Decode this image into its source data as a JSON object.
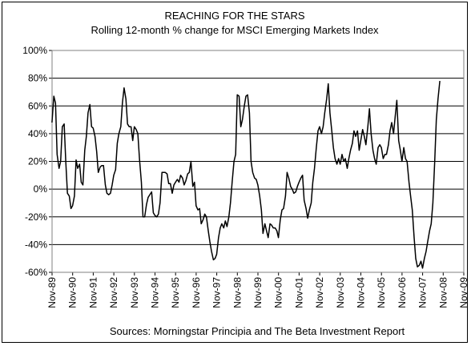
{
  "chart_data": {
    "type": "line",
    "title": "REACHING FOR THE STARS",
    "subtitle": "Rolling 12-month % change for MSCI Emerging Markets Index",
    "source": "Sources: Morningstar Principia and The Beta Investment Report",
    "xlabel": "",
    "ylabel": "",
    "ylim": [
      -60,
      100
    ],
    "yticks": [
      -60,
      -40,
      -20,
      0,
      20,
      40,
      60,
      80,
      100
    ],
    "ytick_labels": [
      "-60%",
      "-40%",
      "-20%",
      "0%",
      "20%",
      "40%",
      "60%",
      "80%",
      "100%"
    ],
    "xlim": [
      1989.833,
      2009.833
    ],
    "xticks": [
      1989.833,
      1990.833,
      1991.833,
      1992.833,
      1993.833,
      1994.833,
      1995.833,
      1996.833,
      1997.833,
      1998.833,
      1999.833,
      2000.833,
      2001.833,
      2002.833,
      2003.833,
      2004.833,
      2005.833,
      2006.833,
      2007.833,
      2008.833,
      2009.833
    ],
    "xtick_labels": [
      "Nov-89",
      "Nov-90",
      "Nov-91",
      "Nov-92",
      "Nov-93",
      "Nov-94",
      "Nov-95",
      "Nov-96",
      "Nov-97",
      "Nov-98",
      "Nov-99",
      "Nov-00",
      "Nov-01",
      "Nov-02",
      "Nov-03",
      "Nov-04",
      "Nov-05",
      "Nov-06",
      "Nov-07",
      "Nov-08",
      "Nov-09"
    ],
    "grid": "horizontal",
    "legend": "none",
    "line_color": "#000000",
    "series": [
      {
        "values": [
          [
            1989.83,
            48
          ],
          [
            1989.92,
            67
          ],
          [
            1990.0,
            62
          ],
          [
            1990.08,
            25
          ],
          [
            1990.17,
            15
          ],
          [
            1990.25,
            20
          ],
          [
            1990.33,
            45
          ],
          [
            1990.42,
            47
          ],
          [
            1990.5,
            20
          ],
          [
            1990.58,
            -3
          ],
          [
            1990.67,
            -5
          ],
          [
            1990.75,
            -14
          ],
          [
            1990.83,
            -12
          ],
          [
            1990.92,
            -5
          ],
          [
            1991.0,
            21
          ],
          [
            1991.08,
            15
          ],
          [
            1991.17,
            18
          ],
          [
            1991.25,
            5
          ],
          [
            1991.33,
            3
          ],
          [
            1991.42,
            28
          ],
          [
            1991.5,
            38
          ],
          [
            1991.58,
            55
          ],
          [
            1991.67,
            61
          ],
          [
            1991.75,
            45
          ],
          [
            1991.83,
            44
          ],
          [
            1991.92,
            38
          ],
          [
            1992.0,
            27
          ],
          [
            1992.08,
            12
          ],
          [
            1992.17,
            16
          ],
          [
            1992.25,
            17
          ],
          [
            1992.33,
            17
          ],
          [
            1992.42,
            3
          ],
          [
            1992.5,
            -3
          ],
          [
            1992.58,
            -4
          ],
          [
            1992.67,
            -3
          ],
          [
            1992.75,
            3
          ],
          [
            1992.83,
            10
          ],
          [
            1992.92,
            14
          ],
          [
            1993.0,
            33
          ],
          [
            1993.08,
            40
          ],
          [
            1993.17,
            45
          ],
          [
            1993.25,
            62
          ],
          [
            1993.33,
            73
          ],
          [
            1993.42,
            65
          ],
          [
            1993.5,
            47
          ],
          [
            1993.58,
            45
          ],
          [
            1993.67,
            45
          ],
          [
            1993.75,
            35
          ],
          [
            1993.83,
            45
          ],
          [
            1993.92,
            43
          ],
          [
            1994.0,
            40
          ],
          [
            1994.08,
            22
          ],
          [
            1994.17,
            5
          ],
          [
            1994.25,
            -20
          ],
          [
            1994.33,
            -20
          ],
          [
            1994.42,
            -11
          ],
          [
            1994.5,
            -6
          ],
          [
            1994.58,
            -4
          ],
          [
            1994.67,
            -2
          ],
          [
            1994.75,
            -17
          ],
          [
            1994.83,
            -19
          ],
          [
            1994.92,
            -20
          ],
          [
            1995.0,
            -18
          ],
          [
            1995.08,
            -10
          ],
          [
            1995.17,
            12
          ],
          [
            1995.25,
            12
          ],
          [
            1995.33,
            12
          ],
          [
            1995.42,
            11
          ],
          [
            1995.5,
            4
          ],
          [
            1995.58,
            4
          ],
          [
            1995.67,
            -3
          ],
          [
            1995.75,
            3
          ],
          [
            1995.83,
            5
          ],
          [
            1995.92,
            7
          ],
          [
            1996.0,
            5
          ],
          [
            1996.08,
            10
          ],
          [
            1996.17,
            8
          ],
          [
            1996.25,
            3
          ],
          [
            1996.33,
            6
          ],
          [
            1996.42,
            11
          ],
          [
            1996.5,
            12
          ],
          [
            1996.58,
            20
          ],
          [
            1996.67,
            2
          ],
          [
            1996.75,
            5
          ],
          [
            1996.83,
            -12
          ],
          [
            1996.92,
            -15
          ],
          [
            1997.0,
            -14
          ],
          [
            1997.08,
            -25
          ],
          [
            1997.17,
            -22
          ],
          [
            1997.25,
            -18
          ],
          [
            1997.33,
            -20
          ],
          [
            1997.42,
            -30
          ],
          [
            1997.5,
            -38
          ],
          [
            1997.58,
            -45
          ],
          [
            1997.67,
            -51
          ],
          [
            1997.75,
            -50
          ],
          [
            1997.83,
            -47
          ],
          [
            1997.92,
            -35
          ],
          [
            1998.0,
            -28
          ],
          [
            1998.08,
            -25
          ],
          [
            1998.17,
            -28
          ],
          [
            1998.25,
            -23
          ],
          [
            1998.33,
            -27
          ],
          [
            1998.42,
            -20
          ],
          [
            1998.5,
            -10
          ],
          [
            1998.58,
            5
          ],
          [
            1998.67,
            20
          ],
          [
            1998.75,
            25
          ],
          [
            1998.83,
            68
          ],
          [
            1998.92,
            67
          ],
          [
            1999.0,
            45
          ],
          [
            1999.08,
            50
          ],
          [
            1999.17,
            60
          ],
          [
            1999.25,
            67
          ],
          [
            1999.33,
            68
          ],
          [
            1999.42,
            55
          ],
          [
            1999.5,
            20
          ],
          [
            1999.58,
            12
          ],
          [
            1999.67,
            8
          ],
          [
            1999.75,
            7
          ],
          [
            1999.83,
            3
          ],
          [
            1999.92,
            -5
          ],
          [
            2000.0,
            -15
          ],
          [
            2000.08,
            -32
          ],
          [
            2000.17,
            -25
          ],
          [
            2000.25,
            -30
          ],
          [
            2000.33,
            -35
          ],
          [
            2000.42,
            -25
          ],
          [
            2000.5,
            -26
          ],
          [
            2000.58,
            -28
          ],
          [
            2000.67,
            -28
          ],
          [
            2000.75,
            -30
          ],
          [
            2000.83,
            -35
          ],
          [
            2000.92,
            -22
          ],
          [
            2001.0,
            -15
          ],
          [
            2001.08,
            -14
          ],
          [
            2001.17,
            -5
          ],
          [
            2001.25,
            12
          ],
          [
            2001.33,
            8
          ],
          [
            2001.42,
            2
          ],
          [
            2001.5,
            0
          ],
          [
            2001.58,
            -3
          ],
          [
            2001.67,
            -2
          ],
          [
            2001.75,
            2
          ],
          [
            2001.83,
            5
          ],
          [
            2001.92,
            8
          ],
          [
            2002.0,
            10
          ],
          [
            2002.08,
            -8
          ],
          [
            2002.17,
            -14
          ],
          [
            2002.25,
            -21
          ],
          [
            2002.33,
            -15
          ],
          [
            2002.42,
            -10
          ],
          [
            2002.5,
            5
          ],
          [
            2002.58,
            15
          ],
          [
            2002.67,
            30
          ],
          [
            2002.75,
            42
          ],
          [
            2002.83,
            45
          ],
          [
            2002.92,
            40
          ],
          [
            2003.0,
            45
          ],
          [
            2003.08,
            55
          ],
          [
            2003.17,
            65
          ],
          [
            2003.25,
            76
          ],
          [
            2003.33,
            55
          ],
          [
            2003.42,
            42
          ],
          [
            2003.5,
            30
          ],
          [
            2003.58,
            22
          ],
          [
            2003.67,
            18
          ],
          [
            2003.75,
            22
          ],
          [
            2003.83,
            18
          ],
          [
            2003.92,
            25
          ],
          [
            2004.0,
            20
          ],
          [
            2004.08,
            22
          ],
          [
            2004.17,
            15
          ],
          [
            2004.25,
            22
          ],
          [
            2004.33,
            28
          ],
          [
            2004.42,
            33
          ],
          [
            2004.5,
            42
          ],
          [
            2004.58,
            38
          ],
          [
            2004.67,
            42
          ],
          [
            2004.75,
            28
          ],
          [
            2004.83,
            35
          ],
          [
            2004.92,
            43
          ],
          [
            2005.0,
            38
          ],
          [
            2005.08,
            32
          ],
          [
            2005.17,
            45
          ],
          [
            2005.25,
            58
          ],
          [
            2005.33,
            40
          ],
          [
            2005.42,
            28
          ],
          [
            2005.5,
            22
          ],
          [
            2005.58,
            18
          ],
          [
            2005.67,
            30
          ],
          [
            2005.75,
            32
          ],
          [
            2005.83,
            30
          ],
          [
            2005.92,
            22
          ],
          [
            2006.0,
            25
          ],
          [
            2006.08,
            25
          ],
          [
            2006.17,
            32
          ],
          [
            2006.25,
            42
          ],
          [
            2006.33,
            48
          ],
          [
            2006.42,
            40
          ],
          [
            2006.5,
            52
          ],
          [
            2006.58,
            64
          ],
          [
            2006.67,
            35
          ],
          [
            2006.75,
            28
          ],
          [
            2006.83,
            20
          ],
          [
            2006.92,
            30
          ],
          [
            2007.0,
            22
          ],
          [
            2007.08,
            20
          ],
          [
            2007.17,
            5
          ],
          [
            2007.25,
            -5
          ],
          [
            2007.33,
            -15
          ],
          [
            2007.42,
            -35
          ],
          [
            2007.5,
            -50
          ],
          [
            2007.58,
            -56
          ],
          [
            2007.67,
            -55
          ],
          [
            2007.75,
            -52
          ],
          [
            2007.83,
            -57
          ],
          [
            2007.92,
            -50
          ],
          [
            2008.0,
            -45
          ],
          [
            2008.08,
            -38
          ],
          [
            2008.17,
            -30
          ],
          [
            2008.25,
            -25
          ],
          [
            2008.33,
            -10
          ],
          [
            2008.42,
            20
          ],
          [
            2008.5,
            50
          ],
          [
            2008.58,
            65
          ],
          [
            2008.67,
            78
          ]
        ]
      }
    ]
  }
}
